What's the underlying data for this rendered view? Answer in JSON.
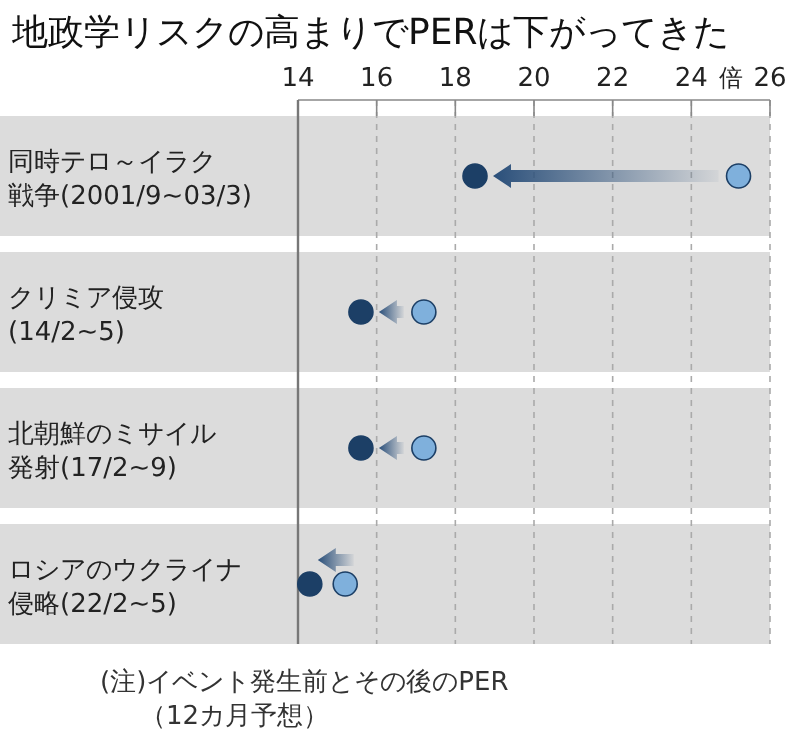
{
  "chart_data": {
    "type": "scatter",
    "orientation": "horizontal",
    "title": "地政学リスクの高まりでPERは下がってきた",
    "xlabel": "倍",
    "categories": [
      "同時テロ～イラク戦争(2001/9~03/3)",
      "クリミア侵攻(14/2~5)",
      "北朝鮮のミサイル発射(17/2~9)",
      "ロシアのウクライナ侵略(22/2~5)"
    ],
    "series": [
      {
        "color": "#7fb0dc",
        "values": [
          25.2,
          17.2,
          17.2,
          15.2
        ]
      },
      {
        "color": "#1c3f66",
        "values": [
          18.5,
          15.6,
          15.6,
          14.3
        ]
      }
    ],
    "xlim": [
      14,
      26
    ],
    "xticks": [
      14,
      16,
      18,
      20,
      22,
      24,
      26
    ],
    "grid": "x",
    "marker": "circle",
    "annotations": [
      "(注)イベント発生前とその後のPER",
      "（12カ月予想）"
    ]
  }
}
